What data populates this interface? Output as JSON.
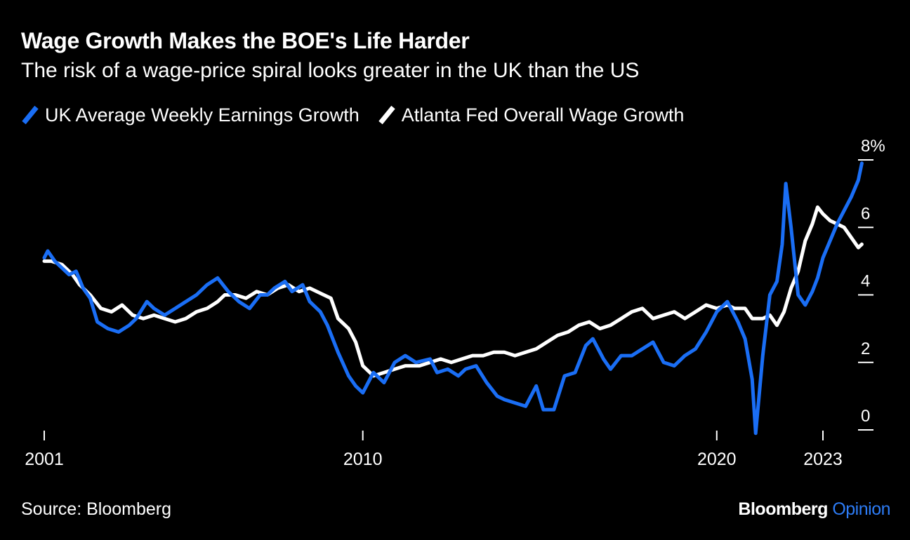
{
  "title": "Wage Growth Makes the BOE's Life Harder",
  "subtitle": "The risk of a wage-price spiral looks greater in the UK than the US",
  "source": "Source: Bloomberg",
  "brand": {
    "name": "Bloomberg",
    "suffix": "Opinion"
  },
  "colors": {
    "uk": "#1a6ef5",
    "us": "#ffffff",
    "background": "#000000"
  },
  "chart_data": {
    "type": "line",
    "xlim": [
      2001.0,
      2023.0
    ],
    "ylim": [
      0,
      8
    ],
    "y_ticks": [
      0,
      2,
      4,
      6,
      8
    ],
    "y_tick_labels": [
      "0",
      "2",
      "4",
      "6",
      "8%"
    ],
    "x_ticks": [
      2001,
      2010,
      2020,
      2023
    ],
    "x_tick_labels": [
      "2001",
      "2010",
      "2020",
      "2023"
    ],
    "y_axis_position": "right",
    "grid": false,
    "legend_position": "top-left",
    "series": [
      {
        "name": "UK Average Weekly Earnings Growth",
        "color": "#1a6ef5",
        "points": [
          [
            2001.0,
            5.1
          ],
          [
            2001.1,
            5.3
          ],
          [
            2001.3,
            5.0
          ],
          [
            2001.5,
            4.8
          ],
          [
            2001.7,
            4.6
          ],
          [
            2001.9,
            4.7
          ],
          [
            2002.1,
            4.2
          ],
          [
            2002.3,
            3.9
          ],
          [
            2002.5,
            3.2
          ],
          [
            2002.8,
            3.0
          ],
          [
            2003.1,
            2.9
          ],
          [
            2003.4,
            3.1
          ],
          [
            2003.6,
            3.3
          ],
          [
            2003.9,
            3.8
          ],
          [
            2004.1,
            3.6
          ],
          [
            2004.4,
            3.4
          ],
          [
            2004.7,
            3.6
          ],
          [
            2005.0,
            3.8
          ],
          [
            2005.3,
            4.0
          ],
          [
            2005.6,
            4.3
          ],
          [
            2005.9,
            4.5
          ],
          [
            2006.2,
            4.1
          ],
          [
            2006.5,
            3.8
          ],
          [
            2006.8,
            3.6
          ],
          [
            2007.1,
            4.0
          ],
          [
            2007.3,
            4.0
          ],
          [
            2007.5,
            4.2
          ],
          [
            2007.8,
            4.4
          ],
          [
            2008.0,
            4.1
          ],
          [
            2008.3,
            4.3
          ],
          [
            2008.5,
            3.8
          ],
          [
            2008.8,
            3.5
          ],
          [
            2009.0,
            3.1
          ],
          [
            2009.3,
            2.3
          ],
          [
            2009.6,
            1.6
          ],
          [
            2009.8,
            1.3
          ],
          [
            2010.0,
            1.1
          ],
          [
            2010.3,
            1.7
          ],
          [
            2010.6,
            1.4
          ],
          [
            2010.9,
            2.0
          ],
          [
            2011.2,
            2.2
          ],
          [
            2011.5,
            2.0
          ],
          [
            2011.9,
            2.1
          ],
          [
            2012.1,
            1.7
          ],
          [
            2012.4,
            1.8
          ],
          [
            2012.7,
            1.6
          ],
          [
            2012.9,
            1.8
          ],
          [
            2013.2,
            1.9
          ],
          [
            2013.5,
            1.4
          ],
          [
            2013.8,
            1.0
          ],
          [
            2014.0,
            0.9
          ],
          [
            2014.3,
            0.8
          ],
          [
            2014.6,
            0.7
          ],
          [
            2014.9,
            1.3
          ],
          [
            2015.1,
            0.6
          ],
          [
            2015.4,
            0.6
          ],
          [
            2015.7,
            1.6
          ],
          [
            2016.0,
            1.7
          ],
          [
            2016.3,
            2.5
          ],
          [
            2016.5,
            2.7
          ],
          [
            2016.8,
            2.1
          ],
          [
            2017.0,
            1.8
          ],
          [
            2017.3,
            2.2
          ],
          [
            2017.6,
            2.2
          ],
          [
            2017.9,
            2.4
          ],
          [
            2018.2,
            2.6
          ],
          [
            2018.5,
            2.0
          ],
          [
            2018.8,
            1.9
          ],
          [
            2019.1,
            2.2
          ],
          [
            2019.4,
            2.4
          ],
          [
            2019.7,
            2.9
          ],
          [
            2020.0,
            3.5
          ],
          [
            2020.3,
            3.8
          ],
          [
            2020.6,
            3.2
          ],
          [
            2020.8,
            2.7
          ],
          [
            2021.0,
            1.5
          ],
          [
            2021.1,
            -0.1
          ],
          [
            2021.3,
            2.2
          ],
          [
            2021.5,
            4.0
          ],
          [
            2021.7,
            4.4
          ],
          [
            2021.85,
            5.5
          ],
          [
            2021.95,
            7.3
          ],
          [
            2022.1,
            6.0
          ],
          [
            2022.3,
            4.0
          ],
          [
            2022.5,
            3.7
          ],
          [
            2022.7,
            4.1
          ],
          [
            2022.85,
            4.5
          ],
          [
            2023.0,
            5.1
          ],
          [
            2023.2,
            5.6
          ],
          [
            2023.4,
            6.1
          ],
          [
            2023.6,
            6.5
          ],
          [
            2023.8,
            6.9
          ],
          [
            2024.0,
            7.4
          ],
          [
            2024.1,
            7.9
          ]
        ]
      },
      {
        "name": "Atlanta Fed Overall Wage Growth",
        "color": "#ffffff",
        "points": [
          [
            2001.0,
            5.0
          ],
          [
            2001.2,
            5.0
          ],
          [
            2001.5,
            4.9
          ],
          [
            2001.8,
            4.6
          ],
          [
            2002.0,
            4.3
          ],
          [
            2002.3,
            4.0
          ],
          [
            2002.6,
            3.6
          ],
          [
            2002.9,
            3.5
          ],
          [
            2003.2,
            3.7
          ],
          [
            2003.5,
            3.4
          ],
          [
            2003.8,
            3.3
          ],
          [
            2004.1,
            3.4
          ],
          [
            2004.4,
            3.3
          ],
          [
            2004.7,
            3.2
          ],
          [
            2005.0,
            3.3
          ],
          [
            2005.3,
            3.5
          ],
          [
            2005.6,
            3.6
          ],
          [
            2005.9,
            3.8
          ],
          [
            2006.1,
            4.0
          ],
          [
            2006.4,
            4.0
          ],
          [
            2006.7,
            3.9
          ],
          [
            2007.0,
            4.1
          ],
          [
            2007.3,
            4.0
          ],
          [
            2007.6,
            4.2
          ],
          [
            2007.9,
            4.3
          ],
          [
            2008.2,
            4.1
          ],
          [
            2008.5,
            4.2
          ],
          [
            2008.9,
            4.0
          ],
          [
            2009.1,
            3.9
          ],
          [
            2009.3,
            3.3
          ],
          [
            2009.6,
            3.0
          ],
          [
            2009.8,
            2.6
          ],
          [
            2010.0,
            1.9
          ],
          [
            2010.3,
            1.6
          ],
          [
            2010.6,
            1.7
          ],
          [
            2010.9,
            1.8
          ],
          [
            2011.2,
            1.9
          ],
          [
            2011.6,
            1.9
          ],
          [
            2011.9,
            2.0
          ],
          [
            2012.2,
            2.1
          ],
          [
            2012.5,
            2.0
          ],
          [
            2012.8,
            2.1
          ],
          [
            2013.1,
            2.2
          ],
          [
            2013.4,
            2.2
          ],
          [
            2013.7,
            2.3
          ],
          [
            2014.0,
            2.3
          ],
          [
            2014.3,
            2.2
          ],
          [
            2014.6,
            2.3
          ],
          [
            2014.9,
            2.4
          ],
          [
            2015.2,
            2.6
          ],
          [
            2015.5,
            2.8
          ],
          [
            2015.8,
            2.9
          ],
          [
            2016.1,
            3.1
          ],
          [
            2016.4,
            3.2
          ],
          [
            2016.7,
            3.0
          ],
          [
            2017.0,
            3.1
          ],
          [
            2017.3,
            3.3
          ],
          [
            2017.6,
            3.5
          ],
          [
            2017.9,
            3.6
          ],
          [
            2018.2,
            3.3
          ],
          [
            2018.5,
            3.4
          ],
          [
            2018.8,
            3.5
          ],
          [
            2019.1,
            3.3
          ],
          [
            2019.4,
            3.5
          ],
          [
            2019.7,
            3.7
          ],
          [
            2020.0,
            3.6
          ],
          [
            2020.3,
            3.7
          ],
          [
            2020.5,
            3.6
          ],
          [
            2020.8,
            3.6
          ],
          [
            2021.0,
            3.3
          ],
          [
            2021.3,
            3.3
          ],
          [
            2021.5,
            3.4
          ],
          [
            2021.7,
            3.1
          ],
          [
            2021.9,
            3.5
          ],
          [
            2022.1,
            4.2
          ],
          [
            2022.3,
            4.7
          ],
          [
            2022.5,
            5.6
          ],
          [
            2022.7,
            6.1
          ],
          [
            2022.85,
            6.6
          ],
          [
            2023.0,
            6.4
          ],
          [
            2023.2,
            6.2
          ],
          [
            2023.4,
            6.1
          ],
          [
            2023.6,
            6.0
          ],
          [
            2023.8,
            5.7
          ],
          [
            2024.0,
            5.4
          ],
          [
            2024.1,
            5.5
          ]
        ]
      }
    ]
  }
}
